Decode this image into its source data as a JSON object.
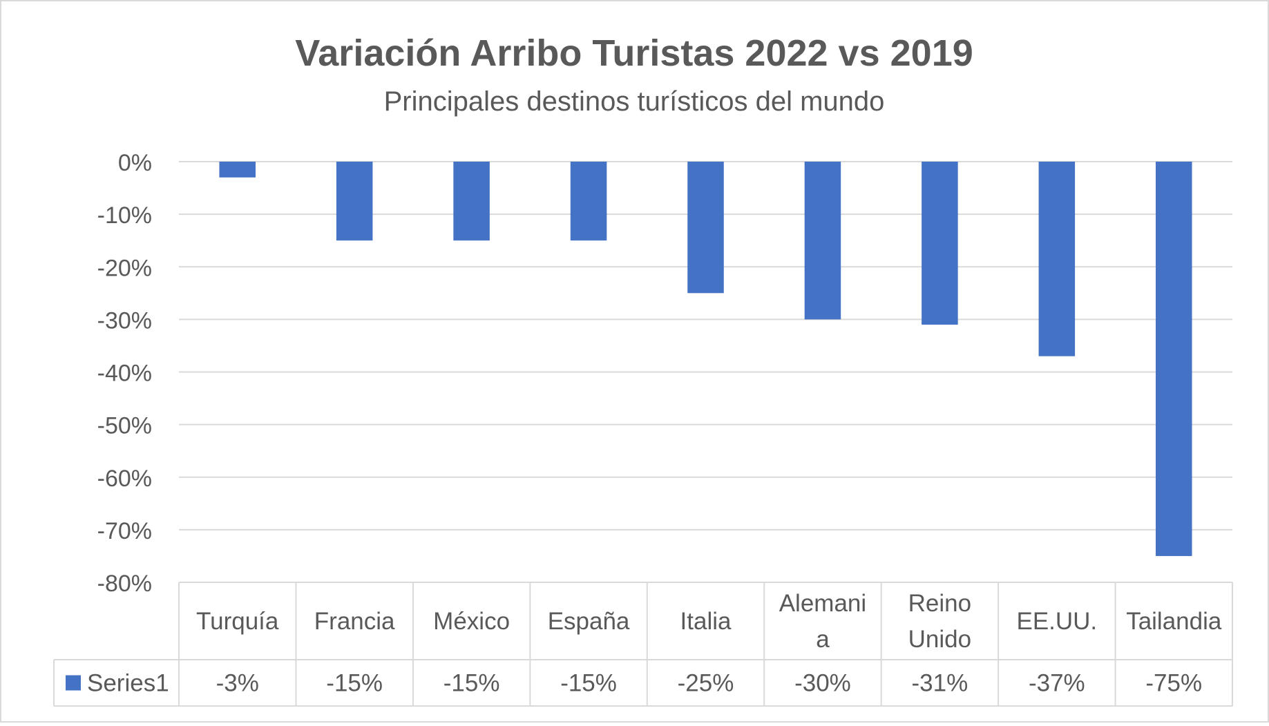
{
  "chart_data": {
    "type": "bar",
    "title": "Variación Arribo Turistas 2022 vs 2019",
    "subtitle": "Principales destinos turísticos del mundo",
    "categories": [
      [
        "Turquía"
      ],
      [
        "Francia"
      ],
      [
        "México"
      ],
      [
        "España"
      ],
      [
        "Italia"
      ],
      [
        "Alemani",
        "a"
      ],
      [
        "Reino",
        "Unido"
      ],
      [
        "EE.UU."
      ],
      [
        "Tailandia"
      ]
    ],
    "series": [
      {
        "name": "Series1",
        "values": [
          -0.03,
          -0.15,
          -0.15,
          -0.15,
          -0.25,
          -0.3,
          -0.31,
          -0.37,
          -0.75
        ],
        "labels": [
          "-3%",
          "-15%",
          "-15%",
          "-15%",
          "-25%",
          "-30%",
          "-31%",
          "-37%",
          "-75%"
        ],
        "color": "#4472C4"
      }
    ],
    "yticks": [
      "0%",
      "-10%",
      "-20%",
      "-30%",
      "-40%",
      "-50%",
      "-60%",
      "-70%",
      "-80%"
    ],
    "ylim": [
      -0.8,
      0
    ],
    "grid": true,
    "data_table": true,
    "colors": {
      "title": "#595959",
      "text": "#595959",
      "grid": "#D9D9D9",
      "border": "#D9D9D9"
    }
  }
}
